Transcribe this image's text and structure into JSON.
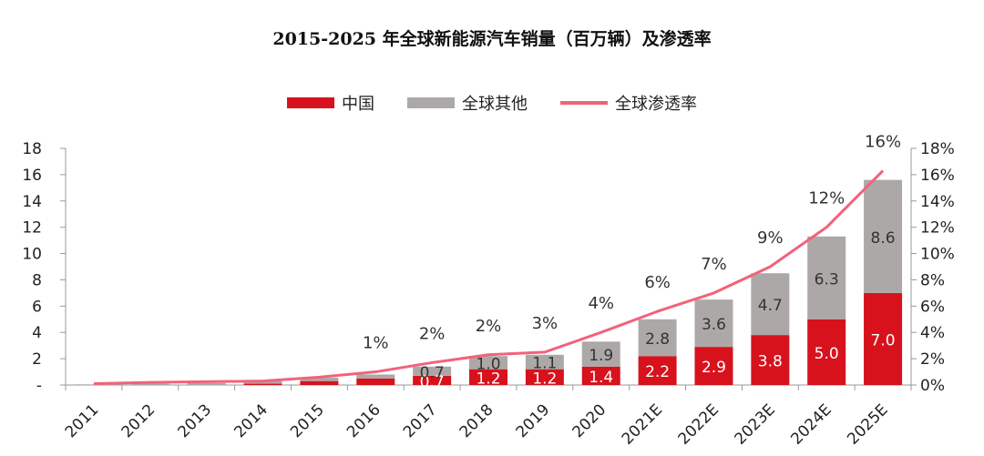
{
  "title": "2015-2025 年全球新能源汽车销量（百万辆）及渗透率",
  "colors": {
    "china": "#d7121c",
    "other": "#ada8a8",
    "penetration": "#f2627a"
  },
  "chart_data": {
    "type": "bar",
    "stacked": true,
    "categories": [
      "2011",
      "2012",
      "2013",
      "2014",
      "2015",
      "2016",
      "2017",
      "2018",
      "2019",
      "2020",
      "2021E",
      "2022E",
      "2023E",
      "2024E",
      "2025E"
    ],
    "series": [
      {
        "name": "中国",
        "type": "bar",
        "values": [
          0.0,
          0.0,
          0.0,
          0.1,
          0.3,
          0.5,
          0.7,
          1.2,
          1.2,
          1.4,
          2.2,
          2.9,
          3.8,
          5.0,
          7.0
        ],
        "labels": [
          "",
          "",
          "",
          "",
          "",
          "",
          "0.7",
          "1.2",
          "1.2",
          "1.4",
          "2.2",
          "2.9",
          "3.8",
          "5.0",
          "7.0"
        ]
      },
      {
        "name": "全球其他",
        "type": "bar",
        "values": [
          0.05,
          0.1,
          0.15,
          0.2,
          0.25,
          0.3,
          0.7,
          1.0,
          1.1,
          1.9,
          2.8,
          3.6,
          4.7,
          6.3,
          8.6
        ],
        "labels": [
          "",
          "",
          "",
          "",
          "",
          "",
          "0.7",
          "1.0",
          "1.1",
          "1.9",
          "2.8",
          "3.6",
          "4.7",
          "6.3",
          "8.6"
        ]
      },
      {
        "name": "全球渗透率",
        "type": "line",
        "axis": "right",
        "values": [
          0.1,
          0.2,
          0.25,
          0.3,
          0.6,
          1.0,
          1.7,
          2.3,
          2.5,
          4.0,
          5.6,
          7.0,
          9.0,
          12.0,
          16.3
        ],
        "labels": [
          "",
          "",
          "",
          "",
          "",
          "1%",
          "2%",
          "2%",
          "3%",
          "4%",
          "6%",
          "7%",
          "9%",
          "12%",
          "16%"
        ]
      }
    ],
    "y_left": {
      "ylim": [
        0,
        18
      ],
      "ticks": [
        "-",
        "2",
        "4",
        "6",
        "8",
        "10",
        "12",
        "14",
        "16",
        "18"
      ]
    },
    "y_right": {
      "ylim": [
        0,
        18
      ],
      "ticks": [
        "0%",
        "2%",
        "4%",
        "6%",
        "8%",
        "10%",
        "12%",
        "14%",
        "16%",
        "18%"
      ]
    },
    "legend_position": "top-center",
    "grid": false
  }
}
